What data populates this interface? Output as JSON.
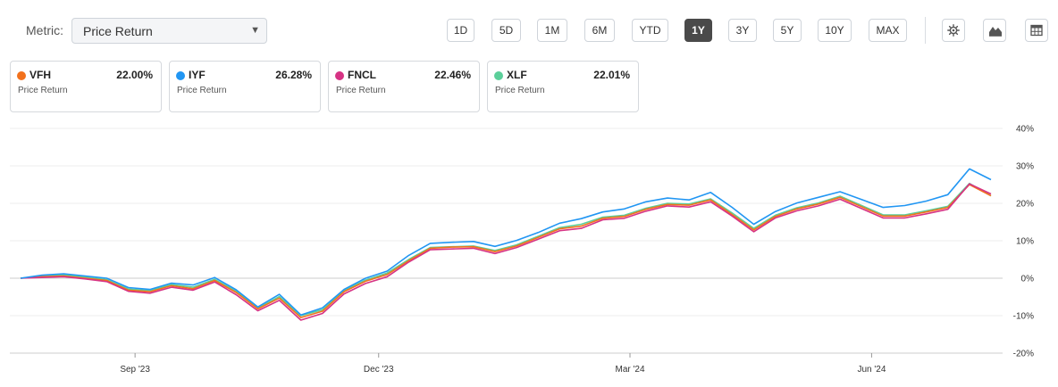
{
  "toolbar": {
    "metric_label": "Metric:",
    "metric_value": "Price Return",
    "ranges": [
      "1D",
      "5D",
      "1M",
      "6M",
      "YTD",
      "1Y",
      "3Y",
      "5Y",
      "10Y",
      "MAX"
    ],
    "active_range": "1Y",
    "icons": [
      "gear-icon",
      "chart-type-icon",
      "table-icon"
    ]
  },
  "cards": [
    {
      "ticker": "VFH",
      "value": "22.00%",
      "sub": "Price Return",
      "color": "#f2711c"
    },
    {
      "ticker": "IYF",
      "value": "26.28%",
      "sub": "Price Return",
      "color": "#2196f3"
    },
    {
      "ticker": "FNCL",
      "value": "22.46%",
      "sub": "Price Return",
      "color": "#d63384"
    },
    {
      "ticker": "XLF",
      "value": "22.01%",
      "sub": "Price Return",
      "color": "#5bcf9a"
    }
  ],
  "chart_data": {
    "type": "line",
    "x_tick_labels": [
      "Sep '23",
      "Dec '23",
      "Mar '24",
      "Jun '24"
    ],
    "y_tick_labels": [
      "40%",
      "30%",
      "20%",
      "10%",
      "0%",
      "-10%",
      "-20%"
    ],
    "ylim": [
      -20,
      40
    ],
    "y_axis_side": "right",
    "grid": "horizontal",
    "series": [
      {
        "name": "VFH",
        "color": "#f2711c",
        "values": [
          0,
          0.4,
          0.6,
          0,
          -0.6,
          -3.2,
          -3.6,
          -2,
          -2.8,
          -0.6,
          -3.8,
          -8.2,
          -5.3,
          -10.5,
          -8.8,
          -3.6,
          -0.8,
          1,
          4.7,
          8,
          8.3,
          8.4,
          7.1,
          8.6,
          10.9,
          13.2,
          13.9,
          16,
          16.5,
          18.4,
          19.7,
          19.5,
          20.9,
          17,
          12.9,
          16.5,
          18.5,
          19.8,
          21.6,
          19.1,
          16.6,
          16.6,
          17.7,
          18.9,
          25,
          22
        ]
      },
      {
        "name": "IYF",
        "color": "#2196f3",
        "values": [
          0,
          0.8,
          1.2,
          0.6,
          0,
          -2.5,
          -3,
          -1.3,
          -1.8,
          0.2,
          -3.1,
          -7.7,
          -4.3,
          -9.8,
          -7.9,
          -3,
          0,
          1.9,
          6.1,
          9.3,
          9.6,
          9.8,
          8.5,
          10.1,
          12.2,
          14.7,
          15.9,
          17.7,
          18.5,
          20.4,
          21.4,
          20.9,
          22.9,
          18.9,
          14.4,
          17.8,
          20.1,
          21.6,
          23.1,
          21,
          18.9,
          19.4,
          20.6,
          22.3,
          29.2,
          26.3
        ]
      },
      {
        "name": "FNCL",
        "color": "#d63384",
        "values": [
          0,
          0.2,
          0.4,
          -0.2,
          -0.9,
          -3.5,
          -4,
          -2.4,
          -3.2,
          -1,
          -4.4,
          -8.7,
          -5.9,
          -11.2,
          -9.4,
          -4.2,
          -1.4,
          0.4,
          4.3,
          7.6,
          7.8,
          8,
          6.6,
          8.2,
          10.4,
          12.7,
          13.3,
          15.6,
          16,
          17.9,
          19.3,
          19,
          20.4,
          16.6,
          12.4,
          16.1,
          18,
          19.3,
          21.1,
          18.6,
          16.1,
          16.1,
          17.2,
          18.4,
          25.2,
          22.5
        ]
      },
      {
        "name": "XLF",
        "color": "#5bcf9a",
        "values": [
          0,
          0.6,
          0.9,
          0.3,
          -0.4,
          -2.9,
          -3.3,
          -1.7,
          -2.4,
          -0.3,
          -3.5,
          -8,
          -4.9,
          -10,
          -8.4,
          -3.3,
          -0.5,
          1.4,
          5,
          8.2,
          8.4,
          8.6,
          7.4,
          8.9,
          11.2,
          13.5,
          14.4,
          16.3,
          16.8,
          18.7,
          20,
          19.8,
          21.2,
          17.4,
          13.3,
          16.8,
          18.8,
          20.1,
          21.9,
          19.4,
          16.9,
          16.9,
          18,
          19.2,
          25.3,
          22
        ]
      }
    ]
  }
}
